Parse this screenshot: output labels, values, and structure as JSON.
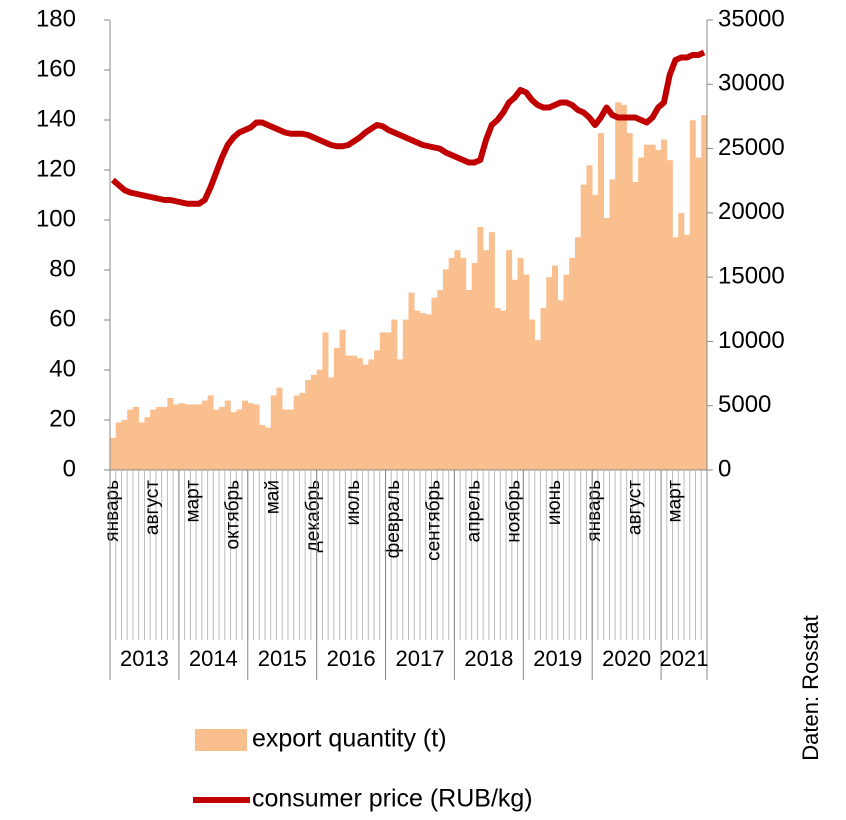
{
  "chart_data": {
    "type": "bar-line",
    "categories": [
      "январь",
      null,
      null,
      null,
      null,
      null,
      null,
      "август",
      null,
      null,
      null,
      null,
      null,
      null,
      "март",
      null,
      null,
      null,
      null,
      null,
      null,
      "октябрь",
      null,
      null,
      null,
      null,
      null,
      null,
      "май",
      null,
      null,
      null,
      null,
      null,
      null,
      "декабрь",
      null,
      null,
      null,
      null,
      null,
      null,
      "июль",
      null,
      null,
      null,
      null,
      null,
      null,
      "февраль",
      null,
      null,
      null,
      null,
      null,
      null,
      "сентябрь",
      null,
      null,
      null,
      null,
      null,
      null,
      "апрель",
      null,
      null,
      null,
      null,
      null,
      null,
      "ноябрь",
      null,
      null,
      null,
      null,
      null,
      null,
      "июнь",
      null,
      null,
      null,
      null,
      null,
      null,
      "январь",
      null,
      null,
      null,
      null,
      null,
      null,
      "август",
      null,
      null,
      null,
      null,
      null,
      null,
      "март",
      null,
      null,
      null,
      null,
      null
    ],
    "year_labels": [
      "2013",
      "2014",
      "2015",
      "2016",
      "2017",
      "2018",
      "2019",
      "2020",
      "2021"
    ],
    "series": [
      {
        "name": "export quantity (t)",
        "type": "bar",
        "axis": "y2",
        "color": "#f9bf8f",
        "values": [
          2500,
          3700,
          3900,
          4700,
          4900,
          3700,
          4100,
          4700,
          4900,
          4900,
          5600,
          5100,
          5200,
          5100,
          5100,
          5100,
          5400,
          5800,
          4700,
          4900,
          5400,
          4500,
          4700,
          5400,
          5200,
          5100,
          3500,
          3300,
          5800,
          6400,
          4700,
          4700,
          5800,
          6000,
          7000,
          7400,
          7800,
          10700,
          7200,
          9500,
          10900,
          8900,
          8900,
          8700,
          8200,
          8600,
          9300,
          10700,
          10700,
          11700,
          8600,
          11700,
          13800,
          12400,
          12200,
          12100,
          13400,
          14000,
          15600,
          16500,
          17100,
          16500,
          14000,
          16100,
          18900,
          17100,
          18500,
          12600,
          12400,
          17100,
          14800,
          16500,
          15200,
          11700,
          10100,
          12600,
          15000,
          15900,
          13200,
          15200,
          16500,
          18100,
          22200,
          23700,
          21400,
          26200,
          19600,
          22600,
          28600,
          28400,
          26200,
          22400,
          24300,
          25300,
          25300,
          24900,
          25700,
          24100,
          18100,
          20000,
          18300,
          27200,
          24300,
          27600
        ]
      },
      {
        "name": "consumer price (RUB/kg)",
        "type": "line",
        "color": "#c00000",
        "values": [
          116,
          114,
          112,
          111,
          110.5,
          110,
          109.5,
          109,
          108.5,
          108,
          108,
          107.5,
          107,
          106.5,
          106.5,
          106.5,
          108,
          113,
          119,
          125,
          130,
          133,
          135,
          136,
          137,
          139,
          139,
          138,
          137,
          136,
          135,
          134.5,
          134.5,
          134.5,
          134,
          133,
          132,
          131,
          130,
          129.5,
          129.5,
          130,
          131.5,
          133,
          135,
          136.5,
          138,
          137.5,
          136,
          135,
          134,
          133,
          132,
          131,
          130,
          129.5,
          129,
          128.5,
          127,
          126,
          125,
          124,
          123,
          123,
          124,
          132,
          138,
          140,
          143,
          147,
          149,
          152,
          151,
          148,
          146,
          145,
          145,
          146,
          147,
          147,
          146,
          144,
          143,
          141,
          138,
          141,
          145,
          142,
          141,
          141,
          141,
          141,
          140,
          139,
          141,
          145,
          147,
          158,
          164,
          165,
          165,
          166,
          166,
          167
        ]
      }
    ],
    "ylim": [
      0,
      180
    ],
    "yticks": [
      0,
      20,
      40,
      60,
      80,
      100,
      120,
      140,
      160,
      180
    ],
    "y2lim": [
      0,
      35000
    ],
    "y2ticks": [
      0,
      5000,
      10000,
      15000,
      20000,
      25000,
      30000,
      35000
    ],
    "source": "Daten: Rosstat"
  }
}
